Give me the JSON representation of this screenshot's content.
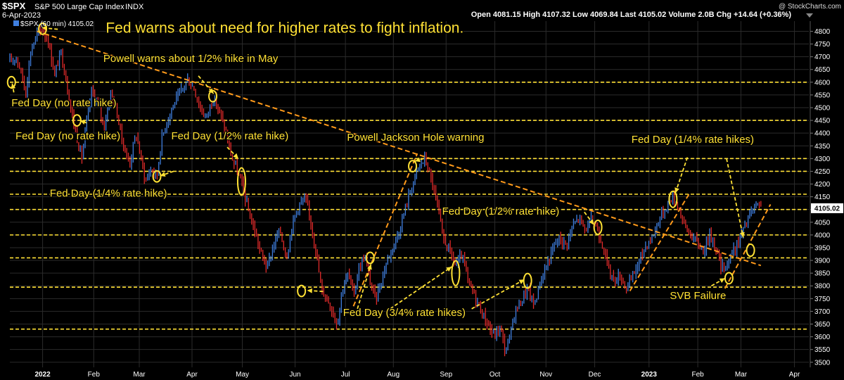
{
  "header": {
    "symbol": "$SPX",
    "name": "S&P 500 Large Cap Index",
    "exchange": "INDX",
    "date": "6-Apr-2023",
    "legend": "$SPX (60 min) 4105.02",
    "ohlc": "Open 4081.15  High 4107.32  Low 4069.84  Last 4105.02  Volume 2.0B  Chg +14.64 (+0.36%)",
    "watermark": "@ StockCharts.com"
  },
  "colors": {
    "background": "#000000",
    "up_bar": "#3f7fe0",
    "down_bar": "#e02a2a",
    "annotation": "#ffe135",
    "trend": "#ff9a1a",
    "grid": "#2b2b2b",
    "last_badge": "#ffffff"
  },
  "icons": {
    "collapse": "triangle-down-icon"
  },
  "chart_data": {
    "type": "ohlc-bar",
    "interval": "60 min",
    "ylim": [
      3480,
      4840
    ],
    "y_ticks": [
      3500,
      3550,
      3600,
      3650,
      3700,
      3750,
      3800,
      3850,
      3900,
      3950,
      4000,
      4050,
      4100,
      4150,
      4200,
      4250,
      4300,
      4350,
      4400,
      4450,
      4500,
      4550,
      4600,
      4650,
      4700,
      4750,
      4800
    ],
    "x_ticks": [
      {
        "label": "2022",
        "bold": true,
        "t": 0.041
      },
      {
        "label": "Feb",
        "bold": false,
        "t": 0.105
      },
      {
        "label": "Mar",
        "bold": false,
        "t": 0.162
      },
      {
        "label": "Apr",
        "bold": false,
        "t": 0.228
      },
      {
        "label": "May",
        "bold": false,
        "t": 0.291
      },
      {
        "label": "Jun",
        "bold": false,
        "t": 0.357
      },
      {
        "label": "Jul",
        "bold": false,
        "t": 0.42
      },
      {
        "label": "Aug",
        "bold": false,
        "t": 0.48
      },
      {
        "label": "Sep",
        "bold": false,
        "t": 0.546
      },
      {
        "label": "Oct",
        "bold": false,
        "t": 0.607
      },
      {
        "label": "Nov",
        "bold": false,
        "t": 0.671
      },
      {
        "label": "Dec",
        "bold": false,
        "t": 0.732
      },
      {
        "label": "2023",
        "bold": true,
        "t": 0.8
      },
      {
        "label": "Feb",
        "bold": false,
        "t": 0.861
      },
      {
        "label": "Mar",
        "bold": false,
        "t": 0.915
      },
      {
        "label": "Apr",
        "bold": false,
        "t": 0.982
      }
    ],
    "last_value": "4105.02",
    "horizontal_levels": [
      4600,
      4450,
      4300,
      4250,
      4160,
      4100,
      4000,
      3910,
      3795,
      3630
    ],
    "price_path": [
      [
        0.0,
        4680
      ],
      [
        0.008,
        4700
      ],
      [
        0.014,
        4640
      ],
      [
        0.02,
        4560
      ],
      [
        0.026,
        4720
      ],
      [
        0.034,
        4790
      ],
      [
        0.041,
        4810
      ],
      [
        0.048,
        4760
      ],
      [
        0.056,
        4630
      ],
      [
        0.064,
        4720
      ],
      [
        0.072,
        4580
      ],
      [
        0.078,
        4470
      ],
      [
        0.084,
        4380
      ],
      [
        0.09,
        4300
      ],
      [
        0.096,
        4440
      ],
      [
        0.102,
        4560
      ],
      [
        0.11,
        4520
      ],
      [
        0.118,
        4420
      ],
      [
        0.126,
        4560
      ],
      [
        0.134,
        4480
      ],
      [
        0.142,
        4350
      ],
      [
        0.15,
        4280
      ],
      [
        0.158,
        4400
      ],
      [
        0.164,
        4300
      ],
      [
        0.17,
        4210
      ],
      [
        0.176,
        4260
      ],
      [
        0.184,
        4230
      ],
      [
        0.19,
        4380
      ],
      [
        0.198,
        4460
      ],
      [
        0.206,
        4520
      ],
      [
        0.214,
        4560
      ],
      [
        0.222,
        4610
      ],
      [
        0.23,
        4580
      ],
      [
        0.238,
        4500
      ],
      [
        0.246,
        4460
      ],
      [
        0.254,
        4540
      ],
      [
        0.262,
        4490
      ],
      [
        0.27,
        4400
      ],
      [
        0.278,
        4300
      ],
      [
        0.286,
        4240
      ],
      [
        0.292,
        4180
      ],
      [
        0.298,
        4100
      ],
      [
        0.306,
        4020
      ],
      [
        0.314,
        3930
      ],
      [
        0.322,
        3870
      ],
      [
        0.33,
        3960
      ],
      [
        0.338,
        4020
      ],
      [
        0.346,
        3910
      ],
      [
        0.354,
        4050
      ],
      [
        0.362,
        4120
      ],
      [
        0.37,
        4140
      ],
      [
        0.378,
        4030
      ],
      [
        0.384,
        3920
      ],
      [
        0.39,
        3780
      ],
      [
        0.396,
        3760
      ],
      [
        0.404,
        3700
      ],
      [
        0.41,
        3650
      ],
      [
        0.416,
        3790
      ],
      [
        0.424,
        3850
      ],
      [
        0.43,
        3760
      ],
      [
        0.436,
        3860
      ],
      [
        0.444,
        3920
      ],
      [
        0.452,
        3800
      ],
      [
        0.458,
        3750
      ],
      [
        0.464,
        3810
      ],
      [
        0.472,
        3900
      ],
      [
        0.48,
        3960
      ],
      [
        0.488,
        4020
      ],
      [
        0.496,
        4120
      ],
      [
        0.504,
        4200
      ],
      [
        0.512,
        4270
      ],
      [
        0.52,
        4300
      ],
      [
        0.528,
        4210
      ],
      [
        0.534,
        4130
      ],
      [
        0.542,
        3990
      ],
      [
        0.55,
        3940
      ],
      [
        0.558,
        3880
      ],
      [
        0.566,
        3920
      ],
      [
        0.574,
        3810
      ],
      [
        0.582,
        3760
      ],
      [
        0.59,
        3700
      ],
      [
        0.598,
        3650
      ],
      [
        0.606,
        3600
      ],
      [
        0.614,
        3640
      ],
      [
        0.62,
        3540
      ],
      [
        0.626,
        3600
      ],
      [
        0.632,
        3700
      ],
      [
        0.64,
        3740
      ],
      [
        0.648,
        3790
      ],
      [
        0.656,
        3720
      ],
      [
        0.664,
        3820
      ],
      [
        0.672,
        3880
      ],
      [
        0.68,
        3950
      ],
      [
        0.688,
        3990
      ],
      [
        0.696,
        3960
      ],
      [
        0.704,
        4030
      ],
      [
        0.712,
        4070
      ],
      [
        0.72,
        4020
      ],
      [
        0.728,
        4060
      ],
      [
        0.736,
        4020
      ],
      [
        0.742,
        3960
      ],
      [
        0.748,
        3880
      ],
      [
        0.756,
        3820
      ],
      [
        0.764,
        3840
      ],
      [
        0.772,
        3790
      ],
      [
        0.78,
        3840
      ],
      [
        0.788,
        3900
      ],
      [
        0.796,
        3960
      ],
      [
        0.804,
        3990
      ],
      [
        0.812,
        4060
      ],
      [
        0.82,
        4100
      ],
      [
        0.828,
        4150
      ],
      [
        0.836,
        4120
      ],
      [
        0.844,
        4040
      ],
      [
        0.852,
        4000
      ],
      [
        0.86,
        3970
      ],
      [
        0.868,
        3940
      ],
      [
        0.876,
        4000
      ],
      [
        0.884,
        3950
      ],
      [
        0.89,
        3870
      ],
      [
        0.896,
        3880
      ],
      [
        0.902,
        3920
      ],
      [
        0.91,
        3960
      ],
      [
        0.918,
        4020
      ],
      [
        0.926,
        4080
      ],
      [
        0.934,
        4110
      ],
      [
        0.94,
        4105
      ]
    ]
  },
  "annotations": [
    {
      "text": "Fed warns about need for higher rates to fight inflation.",
      "size": 21,
      "t": 0.12,
      "y": 4795
    },
    {
      "text": "Powell warns about 1/2% hike in May",
      "size": 15,
      "t": 0.117,
      "y": 4680
    },
    {
      "text": "Fed Day (no rate hike)",
      "size": 15,
      "t": 0.002,
      "y": 4505
    },
    {
      "text": "Fed Day (no rate hike)",
      "size": 15,
      "t": 0.007,
      "y": 4375
    },
    {
      "text": "Fed Day (1/2% rate hike)",
      "size": 15,
      "t": 0.202,
      "y": 4375
    },
    {
      "text": "Powell Jackson Hole warning",
      "size": 15,
      "t": 0.422,
      "y": 4370
    },
    {
      "text": "Fed Day (1/4% rate hikes)",
      "size": 15,
      "t": 0.778,
      "y": 4362
    },
    {
      "text": "Fed Day (1/4% rate hike)",
      "size": 15,
      "t": 0.05,
      "y": 4150
    },
    {
      "text": "Fed Day (1/2% rate hike)",
      "size": 15,
      "t": 0.541,
      "y": 4080
    },
    {
      "text": "Fed Day (3/4% rate hikes)",
      "size": 15,
      "t": 0.417,
      "y": 3682
    },
    {
      "text": "SVB Failure",
      "size": 15,
      "t": 0.826,
      "y": 3748
    }
  ],
  "circles": [
    {
      "t": 0.041,
      "y": 4810,
      "ry": 16
    },
    {
      "t": 0.002,
      "y": 4600,
      "ry": 16
    },
    {
      "t": 0.084,
      "y": 4450,
      "ry": 16
    },
    {
      "t": 0.184,
      "y": 4230,
      "ry": 16
    },
    {
      "t": 0.254,
      "y": 4545,
      "ry": 16
    },
    {
      "t": 0.29,
      "y": 4210,
      "ry": 80
    },
    {
      "t": 0.365,
      "y": 3780,
      "ry": 16
    },
    {
      "t": 0.451,
      "y": 3910,
      "ry": 16
    },
    {
      "t": 0.504,
      "y": 4270,
      "ry": 16
    },
    {
      "t": 0.558,
      "y": 3850,
      "ry": 70
    },
    {
      "t": 0.648,
      "y": 3820,
      "ry": 30
    },
    {
      "t": 0.736,
      "y": 4030,
      "ry": 28
    },
    {
      "t": 0.83,
      "y": 4140,
      "ry": 36
    },
    {
      "t": 0.9,
      "y": 3830,
      "ry": 16
    },
    {
      "t": 0.927,
      "y": 3940,
      "ry": 20
    }
  ],
  "trendlines": [
    {
      "t1": 0.034,
      "y1": 4800,
      "t2": 0.94,
      "y2": 3880
    },
    {
      "t1": 0.43,
      "y1": 3720,
      "t2": 0.51,
      "y2": 4320
    },
    {
      "t1": 0.776,
      "y1": 3780,
      "t2": 0.85,
      "y2": 4160
    },
    {
      "t1": 0.895,
      "y1": 3790,
      "t2": 0.952,
      "y2": 4120
    }
  ],
  "arrows": [
    {
      "t1": 0.06,
      "y1": 4808,
      "t2": 0.04,
      "y2": 4814
    },
    {
      "t1": 0.005,
      "y1": 4560,
      "t2": 0.003,
      "y2": 4595
    },
    {
      "t1": 0.096,
      "y1": 4440,
      "t2": 0.088,
      "y2": 4450
    },
    {
      "t1": 0.205,
      "y1": 4250,
      "t2": 0.188,
      "y2": 4232
    },
    {
      "t1": 0.236,
      "y1": 4625,
      "t2": 0.255,
      "y2": 4555
    },
    {
      "t1": 0.272,
      "y1": 4345,
      "t2": 0.286,
      "y2": 4300
    },
    {
      "t1": 0.392,
      "y1": 3778,
      "t2": 0.372,
      "y2": 3782
    },
    {
      "t1": 0.435,
      "y1": 3710,
      "t2": 0.452,
      "y2": 3885
    },
    {
      "t1": 0.476,
      "y1": 3710,
      "t2": 0.553,
      "y2": 3875
    },
    {
      "t1": 0.578,
      "y1": 3710,
      "t2": 0.644,
      "y2": 3825
    },
    {
      "t1": 0.518,
      "y1": 4300,
      "t2": 0.507,
      "y2": 4290
    },
    {
      "t1": 0.719,
      "y1": 4090,
      "t2": 0.731,
      "y2": 4040
    },
    {
      "t1": 0.848,
      "y1": 4305,
      "t2": 0.833,
      "y2": 4165
    },
    {
      "t1": 0.897,
      "y1": 4300,
      "t2": 0.918,
      "y2": 3990
    },
    {
      "t1": 0.878,
      "y1": 3800,
      "t2": 0.895,
      "y2": 3830
    }
  ]
}
